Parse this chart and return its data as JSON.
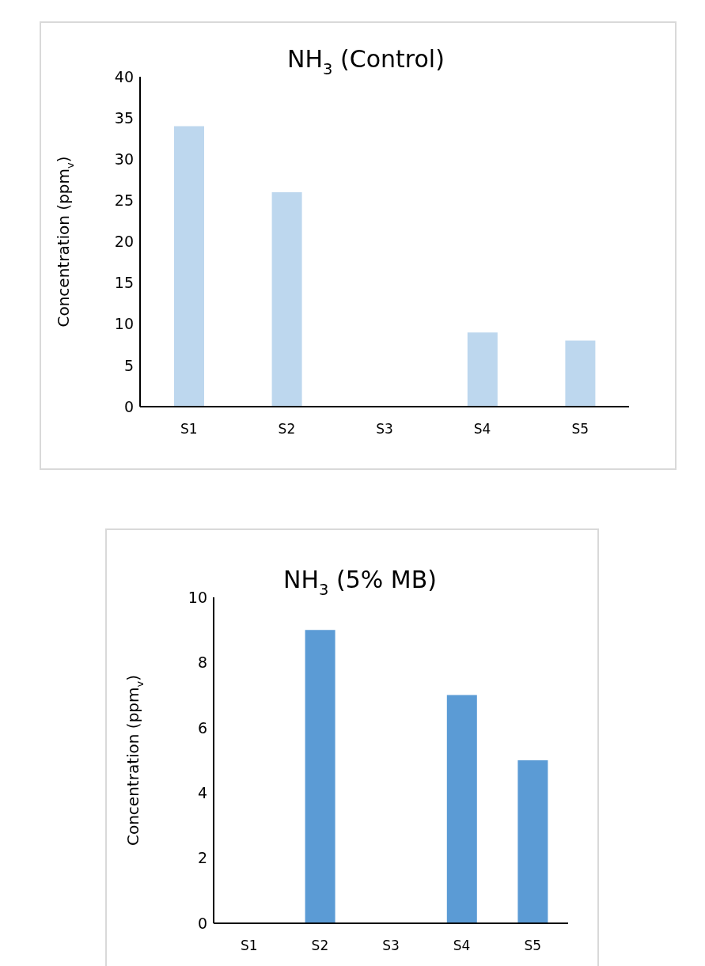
{
  "chart_data": [
    {
      "type": "bar",
      "title": "NH$_{3}$ (Control)",
      "ylabel": "Concentration (ppm$_{v}$)",
      "categories": [
        "S1",
        "S2",
        "S3",
        "S4",
        "S5"
      ],
      "values": [
        34,
        26,
        0,
        9,
        8
      ],
      "color": "#bdd7ee",
      "ylim": [
        0,
        40
      ],
      "yticks": [
        0,
        5,
        10,
        15,
        20,
        25,
        30,
        35,
        40
      ],
      "grid": false,
      "legend": false
    },
    {
      "type": "bar",
      "title": "NH$_{3}$ (5% MB)",
      "ylabel": "Concentration (ppm$_{v}$)",
      "categories": [
        "S1",
        "S2",
        "S3",
        "S4",
        "S5"
      ],
      "values": [
        0,
        9,
        0,
        7,
        5
      ],
      "color": "#5b9bd5",
      "ylim": [
        0,
        10
      ],
      "yticks": [
        0,
        2,
        4,
        6,
        8,
        10
      ],
      "grid": false,
      "legend": false
    }
  ]
}
